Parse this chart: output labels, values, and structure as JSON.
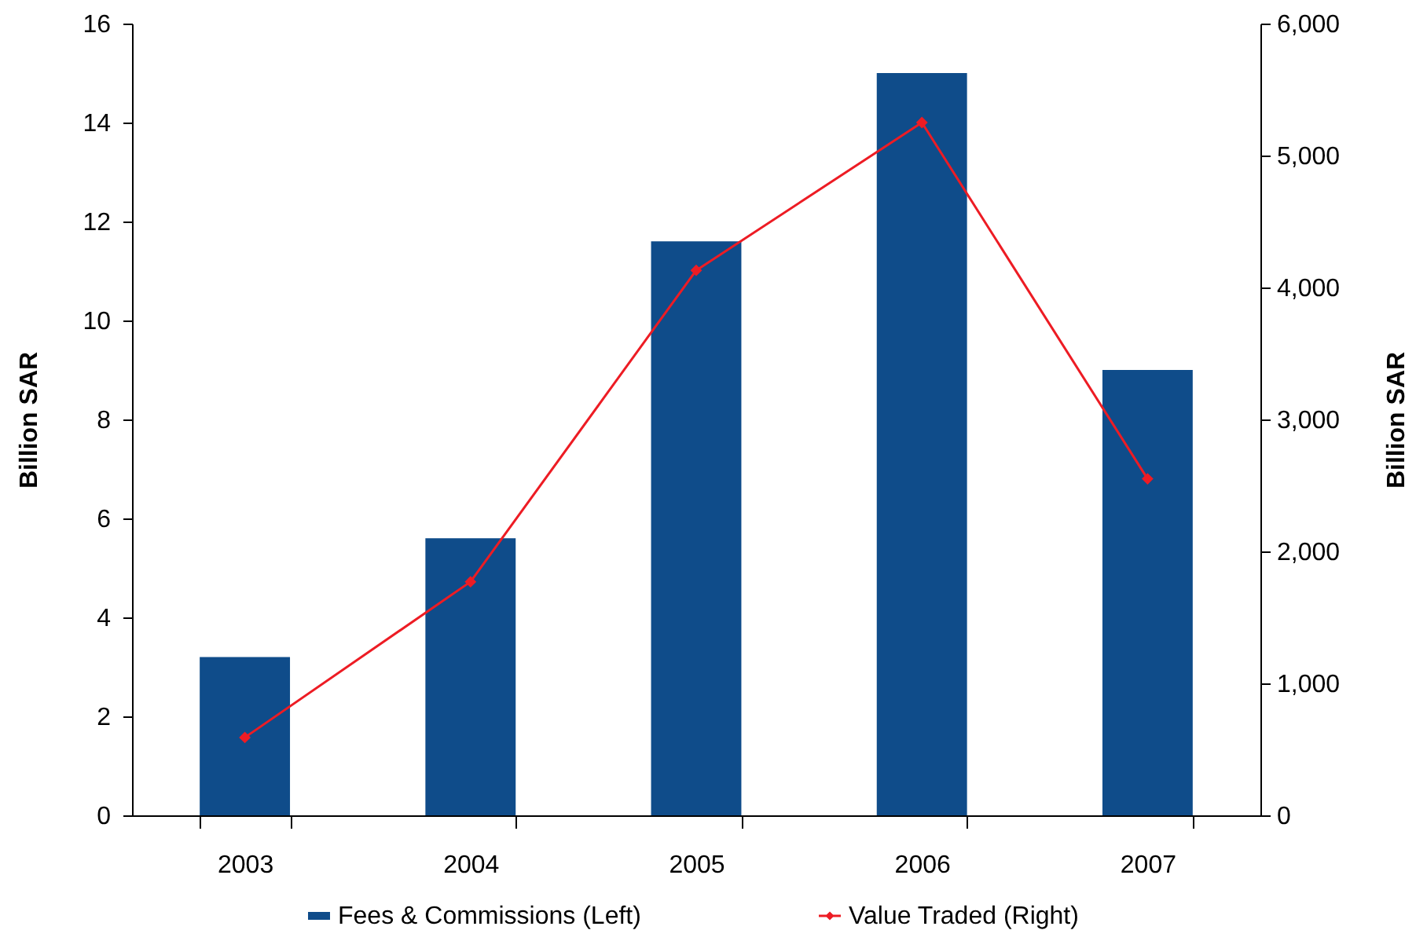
{
  "chart_data": {
    "type": "bar",
    "categories": [
      "2003",
      "2004",
      "2005",
      "2006",
      "2007"
    ],
    "ylabel": "Billion SAR",
    "y2label": "Billion SAR",
    "series": [
      {
        "name": "Fees & Commissions (Left)",
        "color": "#0f4c8a",
        "values": [
          3.2,
          5.6,
          11.6,
          15.0,
          9.0
        ]
      },
      {
        "name": "Value Traded (Right)",
        "type": "line",
        "axis": "y2",
        "color": "#ed1c24",
        "marker": "diamond",
        "values": [
          590,
          1770,
          4130,
          5250,
          2550
        ]
      }
    ],
    "ylim": [
      0,
      16
    ],
    "yticks": [
      0,
      2,
      4,
      6,
      8,
      10,
      12,
      14,
      16
    ],
    "y2lim": [
      0,
      6000
    ],
    "y2ticks": [
      0,
      {
        "value": 1000,
        "label": "1,000"
      },
      {
        "value": 2000,
        "label": "2,000"
      },
      {
        "value": 3000,
        "label": "3,000"
      },
      {
        "value": 4000,
        "label": "4,000"
      },
      {
        "value": 5000,
        "label": "5,000"
      },
      {
        "value": 6000,
        "label": "6,000"
      }
    ],
    "legend": "bottom"
  }
}
